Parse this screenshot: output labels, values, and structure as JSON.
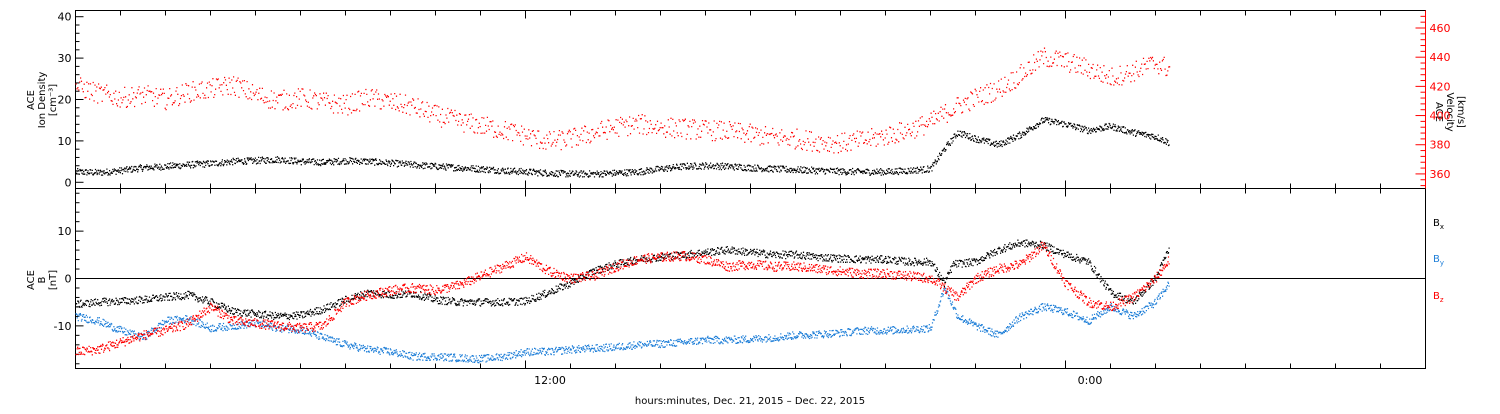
{
  "chart_data": [
    {
      "type": "scatter",
      "panel": "top",
      "xlabel": "hours:minutes, Dec. 21, 2015 – Dec. 22, 2015",
      "x_ticks": [
        {
          "hour": 12,
          "label": "12:00"
        },
        {
          "hour": 24,
          "label": "0:00"
        }
      ],
      "xlim_hours": [
        2,
        32
      ],
      "left_axis": {
        "title_lines": [
          "ACE",
          "Ion Density",
          "[cm⁻³]"
        ],
        "ylim": [
          -1.5,
          41.5
        ],
        "ticks": [
          0,
          10,
          20,
          30,
          40
        ],
        "color": "#000000"
      },
      "right_axis": {
        "title_lines": [
          "ACE",
          "Velocity",
          "[km/s]"
        ],
        "ylim": [
          350,
          472
        ],
        "ticks": [
          360,
          380,
          400,
          420,
          440,
          460
        ],
        "color": "#ff0000"
      },
      "series": [
        {
          "axis": "left",
          "color": "#000000",
          "points": [
            [
              2.0,
              2.5
            ],
            [
              2.5,
              2.3
            ],
            [
              3.0,
              2.8
            ],
            [
              3.5,
              3.5
            ],
            [
              4.0,
              3.8
            ],
            [
              4.5,
              4.2
            ],
            [
              5.0,
              4.5
            ],
            [
              5.5,
              5.0
            ],
            [
              6.0,
              5.2
            ],
            [
              6.5,
              5.5
            ],
            [
              7.0,
              5.0
            ],
            [
              7.5,
              4.8
            ],
            [
              8.0,
              5.2
            ],
            [
              8.5,
              5.0
            ],
            [
              9.0,
              4.6
            ],
            [
              9.5,
              4.2
            ],
            [
              10.0,
              3.8
            ],
            [
              10.5,
              3.5
            ],
            [
              11.0,
              3.2
            ],
            [
              11.5,
              2.8
            ],
            [
              12.0,
              2.5
            ],
            [
              12.5,
              2.2
            ],
            [
              13.0,
              2.0
            ],
            [
              13.5,
              2.0
            ],
            [
              14.0,
              2.2
            ],
            [
              14.5,
              2.5
            ],
            [
              15.0,
              3.2
            ],
            [
              15.5,
              3.8
            ],
            [
              16.0,
              4.0
            ],
            [
              16.5,
              3.8
            ],
            [
              17.0,
              3.5
            ],
            [
              17.5,
              3.2
            ],
            [
              18.0,
              3.0
            ],
            [
              18.5,
              2.8
            ],
            [
              19.0,
              2.6
            ],
            [
              19.5,
              2.5
            ],
            [
              20.0,
              2.5
            ],
            [
              20.5,
              2.8
            ],
            [
              21.0,
              3.2
            ],
            [
              21.3,
              8.0
            ],
            [
              21.6,
              12.0
            ],
            [
              22.0,
              10.5
            ],
            [
              22.5,
              9.0
            ],
            [
              23.0,
              11.5
            ],
            [
              23.5,
              15.0
            ],
            [
              24.0,
              14.0
            ],
            [
              24.5,
              12.5
            ],
            [
              25.0,
              13.5
            ],
            [
              25.5,
              12.0
            ],
            [
              26.0,
              11.0
            ],
            [
              26.3,
              9.5
            ]
          ]
        },
        {
          "axis": "right",
          "color": "#ff0000",
          "points": [
            [
              2.0,
              420
            ],
            [
              2.5,
              415
            ],
            [
              3.0,
              412
            ],
            [
              3.5,
              414
            ],
            [
              4.0,
              411
            ],
            [
              4.5,
              416
            ],
            [
              5.0,
              418
            ],
            [
              5.5,
              421
            ],
            [
              6.0,
              414
            ],
            [
              6.5,
              410
            ],
            [
              7.0,
              412
            ],
            [
              7.5,
              409
            ],
            [
              8.0,
              407
            ],
            [
              8.5,
              412
            ],
            [
              9.0,
              409
            ],
            [
              9.5,
              406
            ],
            [
              10.0,
              400
            ],
            [
              10.5,
              396
            ],
            [
              11.0,
              393
            ],
            [
              11.5,
              390
            ],
            [
              12.0,
              386
            ],
            [
              12.5,
              382
            ],
            [
              13.0,
              384
            ],
            [
              13.5,
              388
            ],
            [
              14.0,
              392
            ],
            [
              14.5,
              394
            ],
            [
              15.0,
              392
            ],
            [
              15.5,
              391
            ],
            [
              16.0,
              390
            ],
            [
              16.5,
              389
            ],
            [
              17.0,
              387
            ],
            [
              17.5,
              385
            ],
            [
              18.0,
              384
            ],
            [
              18.5,
              382
            ],
            [
              19.0,
              381
            ],
            [
              19.5,
              383
            ],
            [
              20.0,
              386
            ],
            [
              20.5,
              390
            ],
            [
              21.0,
              395
            ],
            [
              21.5,
              405
            ],
            [
              22.0,
              412
            ],
            [
              22.5,
              418
            ],
            [
              23.0,
              428
            ],
            [
              23.5,
              440
            ],
            [
              24.0,
              437
            ],
            [
              24.5,
              432
            ],
            [
              25.0,
              426
            ],
            [
              25.5,
              430
            ],
            [
              26.0,
              436
            ],
            [
              26.3,
              432
            ]
          ]
        }
      ]
    },
    {
      "type": "scatter",
      "panel": "bottom",
      "left_axis": {
        "title_lines": [
          "ACE",
          "B",
          "[nT]"
        ],
        "ylim": [
          -19,
          19
        ],
        "ticks": [
          -10,
          0,
          10
        ],
        "color": "#000000"
      },
      "zero_line": true,
      "legend": [
        {
          "base": "B",
          "sub": "x",
          "color": "#000000"
        },
        {
          "base": "B",
          "sub": "y",
          "color": "#1f7fd8"
        },
        {
          "base": "B",
          "sub": "z",
          "color": "#ff0000"
        }
      ],
      "series": [
        {
          "name": "Bx",
          "color": "#000000",
          "points": [
            [
              2.0,
              -5.5
            ],
            [
              2.5,
              -5.0
            ],
            [
              3.0,
              -4.8
            ],
            [
              3.5,
              -4.5
            ],
            [
              4.0,
              -4.0
            ],
            [
              4.5,
              -3.5
            ],
            [
              5.0,
              -5.0
            ],
            [
              5.5,
              -7.0
            ],
            [
              6.0,
              -7.5
            ],
            [
              6.5,
              -8.0
            ],
            [
              7.0,
              -7.8
            ],
            [
              7.5,
              -6.5
            ],
            [
              8.0,
              -4.5
            ],
            [
              8.5,
              -3.0
            ],
            [
              9.0,
              -3.5
            ],
            [
              9.5,
              -3.2
            ],
            [
              10.0,
              -4.5
            ],
            [
              10.5,
              -5.0
            ],
            [
              11.0,
              -5.0
            ],
            [
              11.5,
              -5.0
            ],
            [
              12.0,
              -4.8
            ],
            [
              12.5,
              -3.0
            ],
            [
              13.0,
              -1.0
            ],
            [
              13.5,
              1.5
            ],
            [
              14.0,
              3.0
            ],
            [
              14.5,
              4.0
            ],
            [
              15.0,
              4.5
            ],
            [
              15.5,
              5.0
            ],
            [
              16.0,
              5.5
            ],
            [
              16.5,
              6.0
            ],
            [
              17.0,
              5.5
            ],
            [
              17.5,
              5.0
            ],
            [
              18.0,
              5.0
            ],
            [
              18.5,
              4.5
            ],
            [
              19.0,
              4.2
            ],
            [
              19.5,
              4.0
            ],
            [
              20.0,
              4.0
            ],
            [
              20.5,
              3.5
            ],
            [
              21.0,
              3.5
            ],
            [
              21.3,
              -1.0
            ],
            [
              21.5,
              3.0
            ],
            [
              22.0,
              3.5
            ],
            [
              22.5,
              6.0
            ],
            [
              23.0,
              7.5
            ],
            [
              23.5,
              7.0
            ],
            [
              24.0,
              5.0
            ],
            [
              24.5,
              3.5
            ],
            [
              25.0,
              -3.0
            ],
            [
              25.5,
              -5.0
            ],
            [
              26.0,
              0.0
            ],
            [
              26.3,
              6.5
            ]
          ]
        },
        {
          "name": "By",
          "color": "#1f7fd8",
          "points": [
            [
              2.0,
              -8.0
            ],
            [
              2.5,
              -9.0
            ],
            [
              3.0,
              -11.0
            ],
            [
              3.5,
              -12.5
            ],
            [
              4.0,
              -9.0
            ],
            [
              4.5,
              -8.5
            ],
            [
              5.0,
              -10.5
            ],
            [
              5.5,
              -10.0
            ],
            [
              6.0,
              -9.5
            ],
            [
              6.5,
              -10.5
            ],
            [
              7.0,
              -10.8
            ],
            [
              7.5,
              -12.5
            ],
            [
              8.0,
              -14.0
            ],
            [
              8.5,
              -15.0
            ],
            [
              9.0,
              -15.5
            ],
            [
              9.5,
              -16.5
            ],
            [
              10.0,
              -16.5
            ],
            [
              10.5,
              -16.8
            ],
            [
              11.0,
              -17.0
            ],
            [
              11.5,
              -16.5
            ],
            [
              12.0,
              -15.5
            ],
            [
              12.5,
              -15.5
            ],
            [
              13.0,
              -15.0
            ],
            [
              13.5,
              -14.8
            ],
            [
              14.0,
              -14.5
            ],
            [
              14.5,
              -14.0
            ],
            [
              15.0,
              -13.8
            ],
            [
              15.5,
              -13.5
            ],
            [
              16.0,
              -13.0
            ],
            [
              16.5,
              -13.0
            ],
            [
              17.0,
              -12.8
            ],
            [
              17.5,
              -12.5
            ],
            [
              18.0,
              -12.0
            ],
            [
              18.5,
              -11.8
            ],
            [
              19.0,
              -11.5
            ],
            [
              19.5,
              -11.0
            ],
            [
              20.0,
              -11.0
            ],
            [
              20.5,
              -10.8
            ],
            [
              21.0,
              -10.5
            ],
            [
              21.3,
              -2.0
            ],
            [
              21.6,
              -8.0
            ],
            [
              22.0,
              -10.0
            ],
            [
              22.5,
              -12.0
            ],
            [
              23.0,
              -8.0
            ],
            [
              23.5,
              -6.0
            ],
            [
              24.0,
              -7.0
            ],
            [
              24.5,
              -9.0
            ],
            [
              25.0,
              -6.0
            ],
            [
              25.5,
              -8.0
            ],
            [
              26.0,
              -5.0
            ],
            [
              26.3,
              -1.0
            ]
          ]
        },
        {
          "name": "Bz",
          "color": "#ff0000",
          "points": [
            [
              2.0,
              -15.5
            ],
            [
              2.5,
              -15.0
            ],
            [
              3.0,
              -13.5
            ],
            [
              3.5,
              -12.0
            ],
            [
              4.0,
              -11.0
            ],
            [
              4.5,
              -9.5
            ],
            [
              5.0,
              -6.0
            ],
            [
              5.5,
              -9.0
            ],
            [
              6.0,
              -9.5
            ],
            [
              6.5,
              -10.0
            ],
            [
              7.0,
              -10.5
            ],
            [
              7.5,
              -10.0
            ],
            [
              8.0,
              -5.0
            ],
            [
              8.5,
              -3.5
            ],
            [
              9.0,
              -2.5
            ],
            [
              9.5,
              -2.0
            ],
            [
              10.0,
              -2.5
            ],
            [
              10.5,
              -1.5
            ],
            [
              11.0,
              0.5
            ],
            [
              11.5,
              2.5
            ],
            [
              12.0,
              4.5
            ],
            [
              12.5,
              1.5
            ],
            [
              13.0,
              0.0
            ],
            [
              13.5,
              0.5
            ],
            [
              14.0,
              2.5
            ],
            [
              14.5,
              4.0
            ],
            [
              15.0,
              4.5
            ],
            [
              15.5,
              4.8
            ],
            [
              16.0,
              4.0
            ],
            [
              16.5,
              2.5
            ],
            [
              17.0,
              3.0
            ],
            [
              17.5,
              2.5
            ],
            [
              18.0,
              2.5
            ],
            [
              18.5,
              2.0
            ],
            [
              19.0,
              1.5
            ],
            [
              19.5,
              1.0
            ],
            [
              20.0,
              1.0
            ],
            [
              20.5,
              0.5
            ],
            [
              21.0,
              0.0
            ],
            [
              21.3,
              -2.0
            ],
            [
              21.6,
              -4.0
            ],
            [
              22.0,
              0.0
            ],
            [
              22.5,
              2.0
            ],
            [
              23.0,
              3.0
            ],
            [
              23.5,
              7.0
            ],
            [
              24.0,
              -1.0
            ],
            [
              24.5,
              -5.0
            ],
            [
              25.0,
              -6.0
            ],
            [
              25.5,
              -4.0
            ],
            [
              26.0,
              0.0
            ],
            [
              26.3,
              4.0
            ]
          ]
        }
      ]
    }
  ]
}
